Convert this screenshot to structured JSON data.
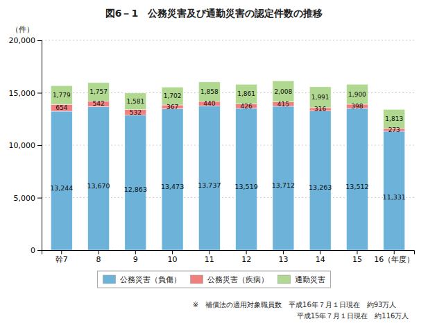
{
  "chart_data": {
    "type": "bar",
    "stacked": true,
    "title": "図6－1　公務災害及び通勤災害の認定件数の推移",
    "y_label": "（件）",
    "categories": [
      "幹7",
      "8",
      "9",
      "10",
      "11",
      "12",
      "13",
      "14",
      "15",
      "16（年度）"
    ],
    "series": [
      {
        "name": "公務災害（負傷）",
        "color": "#6db3d9",
        "values": [
          13244,
          13670,
          12863,
          13473,
          13737,
          13519,
          13712,
          13263,
          13512,
          11331
        ],
        "value_labels": [
          "13,244",
          "13,670",
          "12,863",
          "13,473",
          "13,737",
          "13,519",
          "13,712",
          "13,263",
          "13,512",
          "11,331"
        ]
      },
      {
        "name": "公務災害（疾病）",
        "color": "#f08080",
        "values": [
          654,
          542,
          532,
          367,
          440,
          426,
          415,
          316,
          398,
          273
        ]
      },
      {
        "name": "通勤災害",
        "color": "#b0d890",
        "values": [
          1779,
          1757,
          1581,
          1702,
          1858,
          1861,
          2008,
          1991,
          1900,
          1813
        ],
        "value_labels": [
          "1,779",
          "1,757",
          "1,581",
          "1,702",
          "1,858",
          "1,861",
          "2,008",
          "1,991",
          "1,900",
          "1,813"
        ]
      }
    ],
    "ylim": [
      0,
      20000
    ],
    "yticks": [
      0,
      {
        "value": 5000,
        "label": "5,000"
      },
      {
        "value": 10000,
        "label": "10,000"
      },
      {
        "value": 15000,
        "label": "15,000"
      },
      {
        "value": 20000,
        "label": "20,000"
      }
    ],
    "grid": true,
    "legend": "bottom",
    "data_labels": true,
    "annotations": [
      "※　補償法の適用対象職員数　平成16年７月１日現在　約93万人",
      "　　　　　　　　　　　　　　　平成15年７月１日現在　約116万人"
    ]
  }
}
